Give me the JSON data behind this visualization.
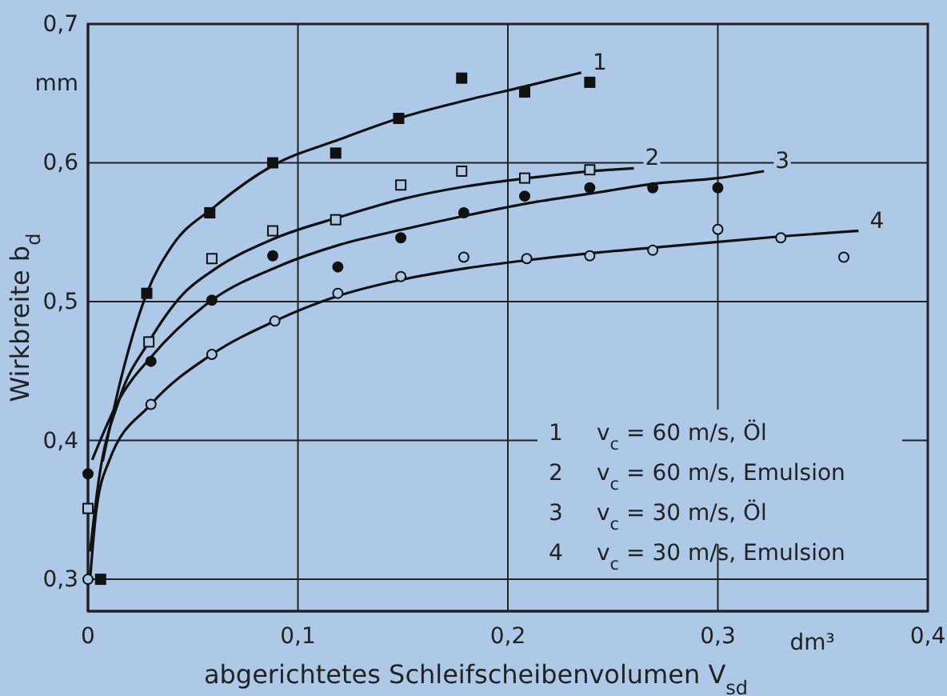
{
  "chart_data": {
    "type": "scatter",
    "xlabel": "abgerichtetes Schleifscheibenvolumen V$_{sd}$",
    "ylabel": "Wirkbreite b$_{d}$",
    "xlim": [
      0,
      0.4
    ],
    "ylim": [
      0.277,
      0.7
    ],
    "xticks": [
      0,
      {
        "value": 0.1,
        "label": "0,1"
      },
      {
        "value": 0.2,
        "label": "0,2"
      },
      {
        "value": 0.3,
        "label": "0,3"
      },
      {
        "value": 0.4,
        "label": "0,4"
      }
    ],
    "yticks": [
      {
        "value": 0.3,
        "label": "0,3"
      },
      {
        "value": 0.4,
        "label": "0,4"
      },
      {
        "value": 0.5,
        "label": "0,5"
      },
      {
        "value": 0.6,
        "label": "0,6"
      },
      {
        "value": 0.7,
        "label": "0,7"
      }
    ],
    "grid": true,
    "annotations": [
      "mm",
      "dm³",
      "1 v$_{c}$ = 60 m/s, Öl",
      "2 v$_{c}$ = 60 m/s, Emulsion",
      "3 v$_{c}$ = 30 m/s, Öl",
      "4 v$_{c}$ = 30 m/s, Emulsion"
    ],
    "series": [
      {
        "marker": "square",
        "color": "#111111",
        "x": [
          0.006,
          0.028,
          0.058,
          0.088,
          0.118,
          0.148,
          0.178,
          0.208,
          0.239
        ],
        "values": [
          0.3,
          0.506,
          0.564,
          0.6,
          0.607,
          0.632,
          0.661,
          0.651,
          0.658
        ]
      },
      {
        "marker": "square",
        "color": "#111111",
        "x": [
          0,
          0.029,
          0.059,
          0.088,
          0.118,
          0.149,
          0.178,
          0.208,
          0.239
        ],
        "values": [
          0.351,
          0.471,
          0.531,
          0.551,
          0.559,
          0.584,
          0.594,
          0.589,
          0.595
        ]
      },
      {
        "marker": "circle",
        "color": "#111111",
        "x": [
          0,
          0.03,
          0.059,
          0.088,
          0.119,
          0.149,
          0.179,
          0.208,
          0.239,
          0.269,
          0.3
        ],
        "values": [
          0.376,
          0.457,
          0.501,
          0.533,
          0.525,
          0.546,
          0.564,
          0.576,
          0.582,
          0.582,
          0.582
        ]
      },
      {
        "marker": "circle",
        "color": "#111111",
        "x": [
          0,
          0.03,
          0.059,
          0.089,
          0.119,
          0.149,
          0.179,
          0.209,
          0.239,
          0.269,
          0.3,
          0.33,
          0.36
        ],
        "values": [
          0.3,
          0.426,
          0.462,
          0.486,
          0.506,
          0.518,
          0.532,
          0.531,
          0.533,
          0.537,
          0.552,
          0.546,
          0.532
        ]
      },
      {
        "type": "line",
        "name": "1",
        "color": "#111111",
        "x": [
          0.007,
          0.015,
          0.028,
          0.04,
          0.06,
          0.088,
          0.12,
          0.15,
          0.18,
          0.208,
          0.235
        ],
        "values": [
          0.385,
          0.44,
          0.506,
          0.54,
          0.568,
          0.598,
          0.617,
          0.633,
          0.645,
          0.655,
          0.665
        ]
      },
      {
        "type": "line",
        "name": "2",
        "color": "#111111",
        "x": [
          0.001,
          0.005,
          0.015,
          0.029,
          0.045,
          0.06,
          0.088,
          0.12,
          0.15,
          0.18,
          0.21,
          0.24,
          0.26
        ],
        "values": [
          0.32,
          0.37,
          0.43,
          0.471,
          0.505,
          0.523,
          0.545,
          0.561,
          0.574,
          0.583,
          0.589,
          0.594,
          0.596
        ]
      },
      {
        "type": "line",
        "name": "3",
        "color": "#111111",
        "x": [
          0.002,
          0.015,
          0.03,
          0.059,
          0.09,
          0.12,
          0.15,
          0.18,
          0.21,
          0.24,
          0.27,
          0.3,
          0.322
        ],
        "values": [
          0.386,
          0.43,
          0.46,
          0.501,
          0.525,
          0.541,
          0.552,
          0.562,
          0.571,
          0.578,
          0.585,
          0.589,
          0.594
        ]
      },
      {
        "type": "line",
        "name": "4",
        "color": "#111111",
        "x": [
          0.001,
          0.004,
          0.01,
          0.03,
          0.059,
          0.089,
          0.119,
          0.15,
          0.18,
          0.21,
          0.24,
          0.27,
          0.3,
          0.33,
          0.367
        ],
        "values": [
          0.3,
          0.35,
          0.385,
          0.426,
          0.462,
          0.486,
          0.504,
          0.516,
          0.524,
          0.53,
          0.535,
          0.539,
          0.543,
          0.547,
          0.551
        ]
      }
    ]
  }
}
